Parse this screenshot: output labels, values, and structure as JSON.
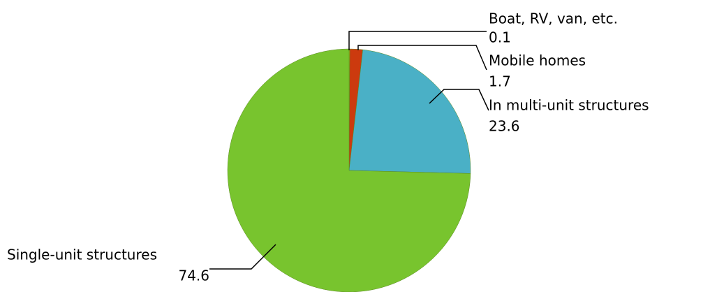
{
  "chart_data": {
    "type": "pie",
    "categories": [
      "Boat, RV, van, etc.",
      "Mobile homes",
      "In multi-unit structures",
      "Single-unit structures"
    ],
    "values": [
      0.1,
      1.7,
      23.6,
      74.6
    ],
    "colors": [
      "#e8c400",
      "#cc3a0e",
      "#4ab0c6",
      "#78c42e"
    ]
  }
}
